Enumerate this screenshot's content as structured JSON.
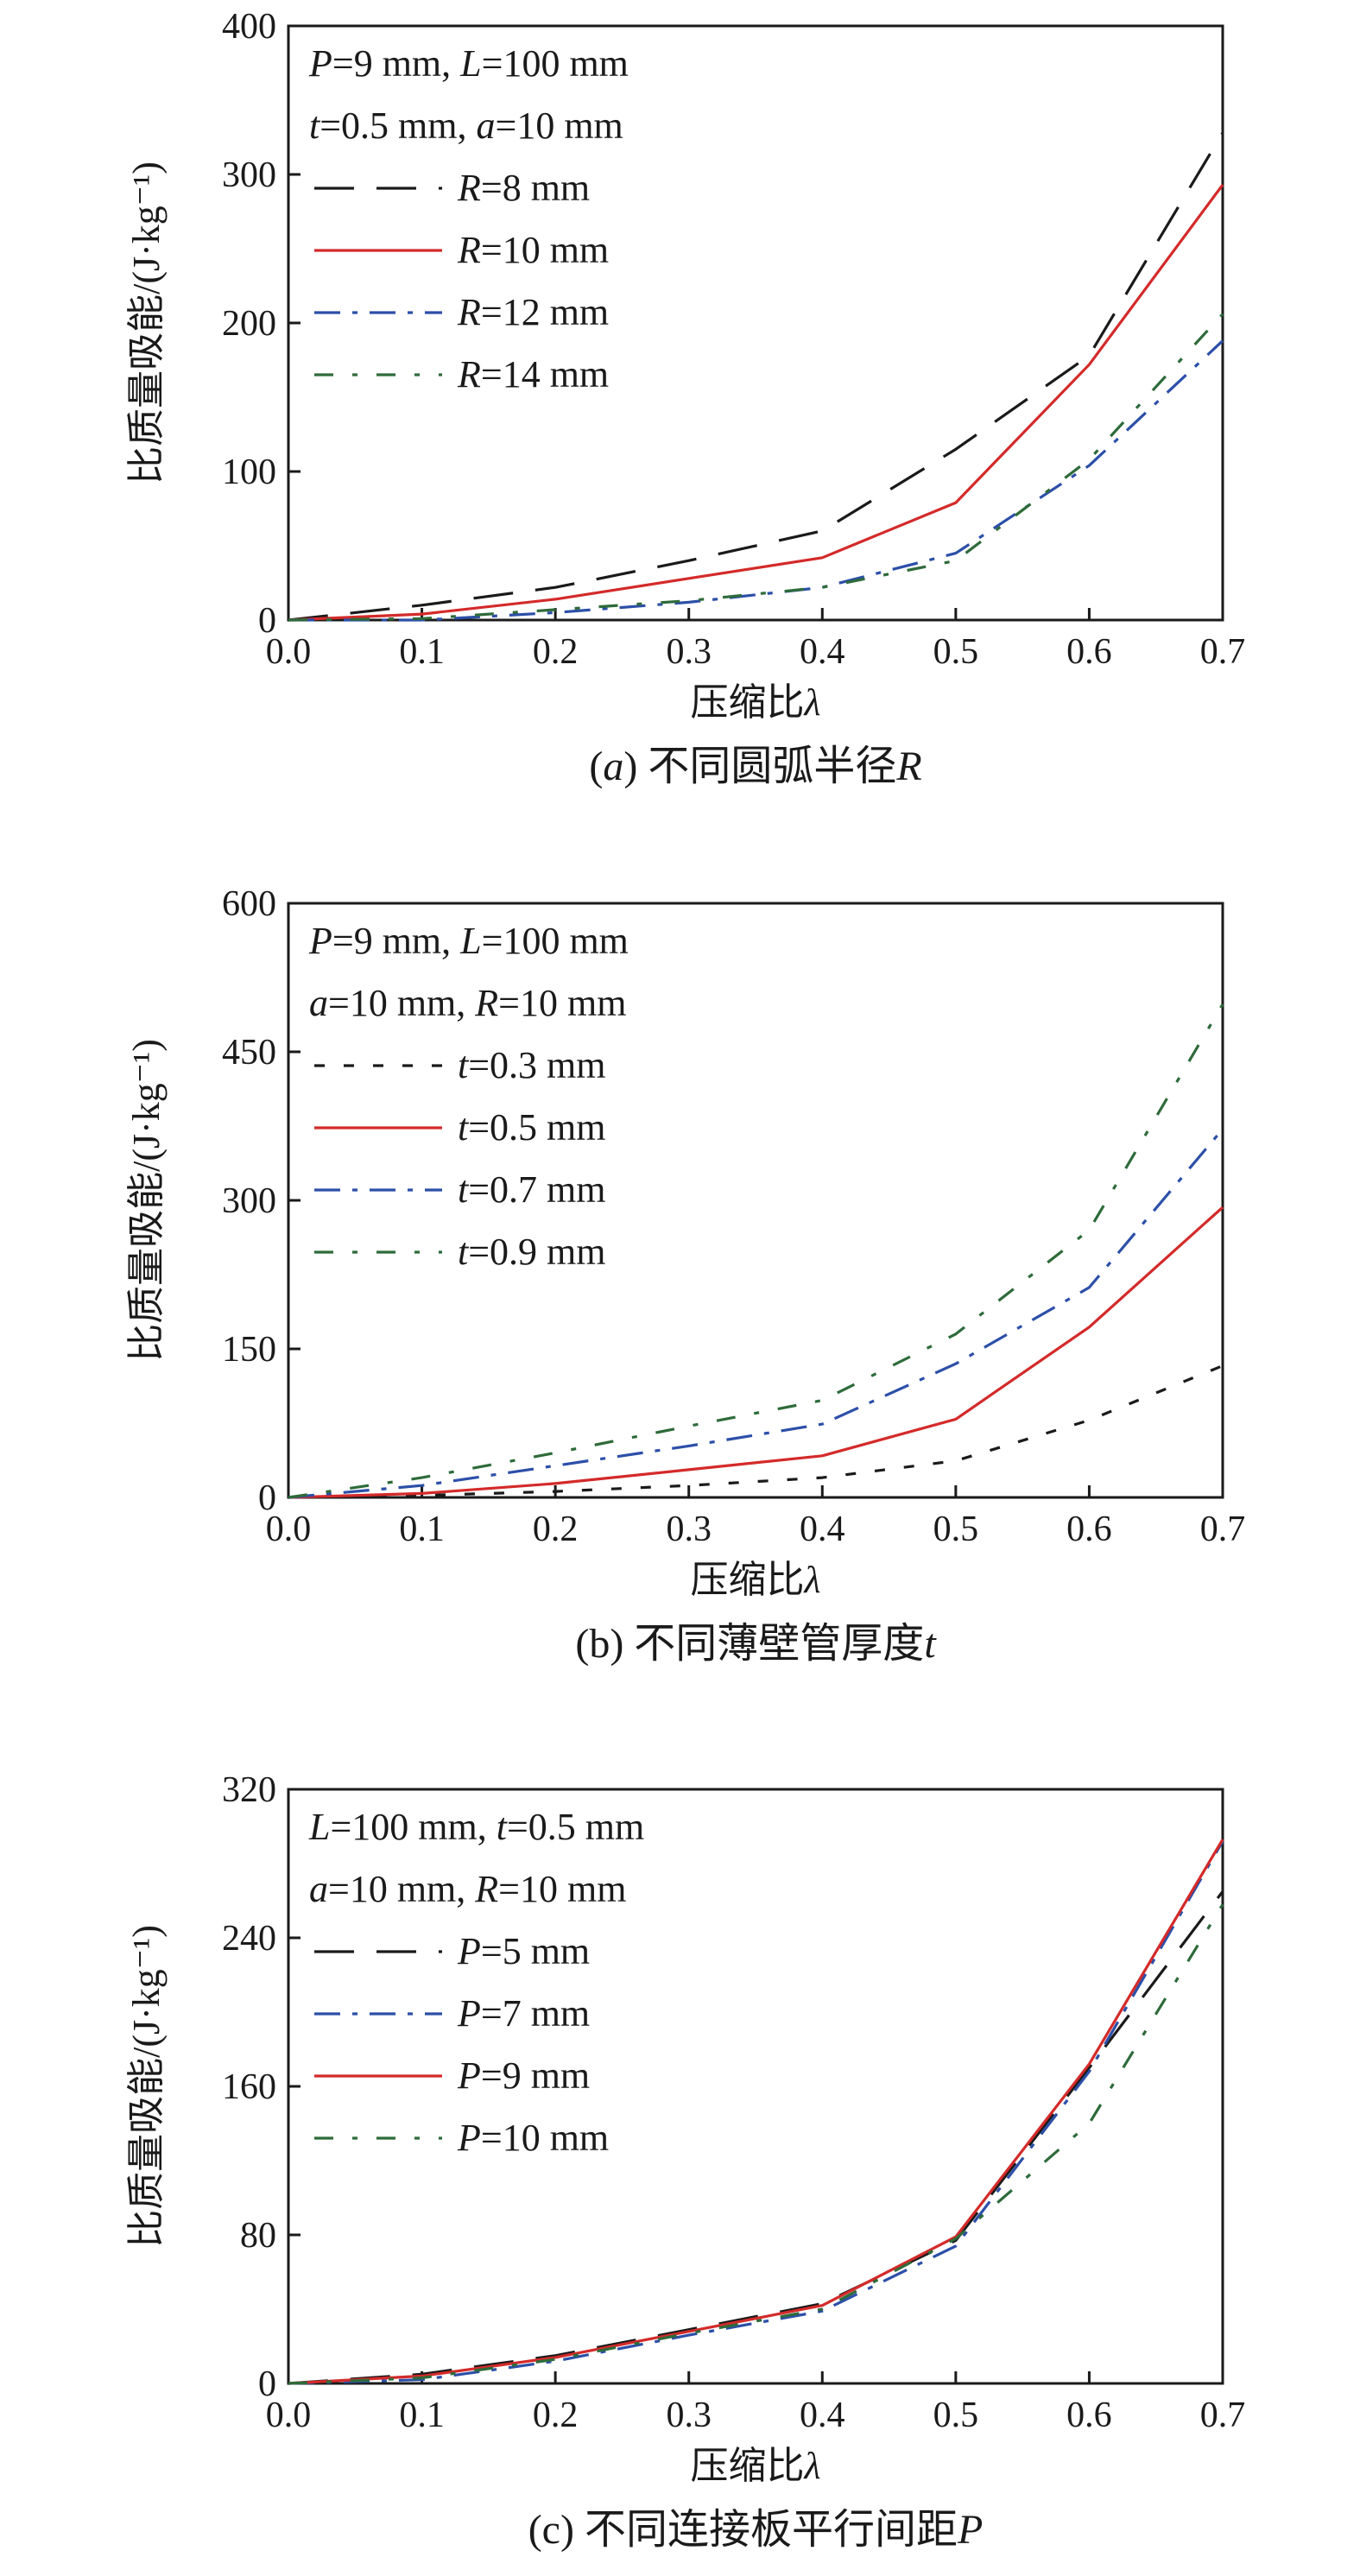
{
  "chart_data": [
    {
      "type": "line",
      "caption": "(a) 不同圆弧半径R",
      "xlabel": "压缩比λ",
      "ylabel": "比质量吸能/(J·kg⁻¹)",
      "xlim": [
        0,
        0.7
      ],
      "ylim": [
        0,
        400
      ],
      "xticks": [
        "0.0",
        "0.1",
        "0.2",
        "0.3",
        "0.4",
        "0.5",
        "0.6",
        "0.7"
      ],
      "yticks": [
        "0",
        "100",
        "200",
        "300",
        "400"
      ],
      "params": [
        "P=9 mm, L=100 mm",
        "t=0.5 mm, a=10 mm"
      ],
      "legend_position": "top-left",
      "series": [
        {
          "name": "R=8 mm",
          "color": "#1a1a1a",
          "dash": "dash",
          "x": [
            0,
            0.1,
            0.2,
            0.3,
            0.4,
            0.5,
            0.6,
            0.7
          ],
          "values": [
            0,
            10,
            22,
            40,
            60,
            115,
            178,
            328
          ]
        },
        {
          "name": "R=10 mm",
          "color": "#d42a2a",
          "dash": "solid",
          "x": [
            0,
            0.1,
            0.2,
            0.3,
            0.4,
            0.5,
            0.6,
            0.7
          ],
          "values": [
            0,
            4,
            14,
            28,
            42,
            79,
            172,
            293
          ]
        },
        {
          "name": "R=12 mm",
          "color": "#2c4fa8",
          "dash": "dashdot",
          "x": [
            0,
            0.1,
            0.2,
            0.3,
            0.4,
            0.5,
            0.6,
            0.7
          ],
          "values": [
            0,
            0,
            5,
            12,
            22,
            45,
            104,
            188
          ]
        },
        {
          "name": "R=14 mm",
          "color": "#2e6b3a",
          "dash": "dashdot2",
          "x": [
            0,
            0.1,
            0.2,
            0.3,
            0.4,
            0.5,
            0.6,
            0.7
          ],
          "values": [
            0,
            1,
            7,
            13,
            22,
            40,
            108,
            206
          ]
        }
      ]
    },
    {
      "type": "line",
      "caption": "(b) 不同薄壁管厚度t",
      "xlabel": "压缩比λ",
      "ylabel": "比质量吸能/(J·kg⁻¹)",
      "xlim": [
        0,
        0.7
      ],
      "ylim": [
        0,
        600
      ],
      "xticks": [
        "0.0",
        "0.1",
        "0.2",
        "0.3",
        "0.4",
        "0.5",
        "0.6",
        "0.7"
      ],
      "yticks": [
        "0",
        "150",
        "300",
        "450",
        "600"
      ],
      "params": [
        "P=9 mm, L=100 mm",
        "a=10 mm, R=10 mm"
      ],
      "legend_position": "top-left",
      "series": [
        {
          "name": "t=0.3 mm",
          "color": "#1a1a1a",
          "dash": "dot",
          "x": [
            0,
            0.1,
            0.2,
            0.3,
            0.4,
            0.5,
            0.6,
            0.7
          ],
          "values": [
            0,
            2,
            6,
            12,
            20,
            37,
            78,
            133
          ]
        },
        {
          "name": "t=0.5 mm",
          "color": "#d42a2a",
          "dash": "solid",
          "x": [
            0,
            0.1,
            0.2,
            0.3,
            0.4,
            0.5,
            0.6,
            0.7
          ],
          "values": [
            0,
            4,
            14,
            28,
            42,
            79,
            172,
            293
          ]
        },
        {
          "name": "t=0.7 mm",
          "color": "#2c4fa8",
          "dash": "dashdot",
          "x": [
            0,
            0.1,
            0.2,
            0.3,
            0.4,
            0.5,
            0.6,
            0.7
          ],
          "values": [
            0,
            12,
            32,
            52,
            74,
            135,
            212,
            372
          ]
        },
        {
          "name": "t=0.9 mm",
          "color": "#2e6b3a",
          "dash": "dashdot2",
          "x": [
            0,
            0.1,
            0.2,
            0.3,
            0.4,
            0.5,
            0.6,
            0.7
          ],
          "values": [
            0,
            20,
            45,
            72,
            98,
            165,
            270,
            498
          ]
        }
      ]
    },
    {
      "type": "line",
      "caption": "(c) 不同连接板平行间距P",
      "xlabel": "压缩比λ",
      "ylabel": "比质量吸能/(J·kg⁻¹)",
      "xlim": [
        0,
        0.7
      ],
      "ylim": [
        0,
        320
      ],
      "xticks": [
        "0.0",
        "0.1",
        "0.2",
        "0.3",
        "0.4",
        "0.5",
        "0.6",
        "0.7"
      ],
      "yticks": [
        "0",
        "80",
        "160",
        "240",
        "320"
      ],
      "params": [
        "L=100 mm, t=0.5 mm",
        "a=10 mm, R=10 mm"
      ],
      "legend_position": "top-left",
      "series": [
        {
          "name": "P=5 mm",
          "color": "#1a1a1a",
          "dash": "dash",
          "x": [
            0,
            0.1,
            0.2,
            0.3,
            0.4,
            0.5,
            0.6,
            0.7
          ],
          "values": [
            0,
            5,
            15,
            29,
            43,
            77,
            170,
            265
          ]
        },
        {
          "name": "P=7 mm",
          "color": "#2c4fa8",
          "dash": "dashdot",
          "x": [
            0,
            0.1,
            0.2,
            0.3,
            0.4,
            0.5,
            0.6,
            0.7
          ],
          "values": [
            0,
            2,
            12,
            26,
            39,
            74,
            168,
            292
          ]
        },
        {
          "name": "P=9 mm",
          "color": "#d42a2a",
          "dash": "solid",
          "x": [
            0,
            0.1,
            0.2,
            0.3,
            0.4,
            0.5,
            0.6,
            0.7
          ],
          "values": [
            0,
            4,
            14,
            28,
            42,
            79,
            172,
            293
          ]
        },
        {
          "name": "P=10 mm",
          "color": "#2e6b3a",
          "dash": "dashdot2",
          "x": [
            0,
            0.1,
            0.2,
            0.3,
            0.4,
            0.5,
            0.6,
            0.7
          ],
          "values": [
            0,
            3,
            13,
            27,
            40,
            78,
            140,
            258
          ]
        }
      ]
    }
  ]
}
